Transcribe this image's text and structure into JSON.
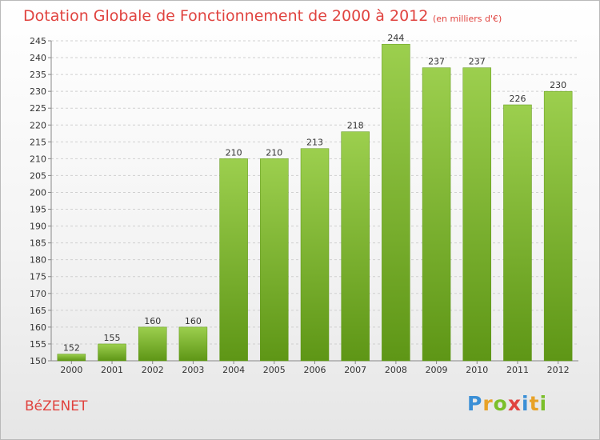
{
  "chart_data": {
    "type": "bar",
    "title": "Dotation Globale de Fonctionnement de 2000 à 2012",
    "subtitle": "(en milliers d'€)",
    "xlabel": "",
    "ylabel": "",
    "categories": [
      "2000",
      "2001",
      "2002",
      "2003",
      "2004",
      "2005",
      "2006",
      "2007",
      "2008",
      "2009",
      "2010",
      "2011",
      "2012"
    ],
    "values": [
      152,
      155,
      160,
      160,
      210,
      210,
      213,
      218,
      244,
      237,
      237,
      226,
      230
    ],
    "ylim": [
      150,
      245
    ],
    "yticks": [
      150,
      155,
      160,
      165,
      170,
      175,
      180,
      185,
      190,
      195,
      200,
      205,
      210,
      215,
      220,
      225,
      230,
      235,
      240,
      245
    ],
    "grid": true,
    "bar_color": "#7ab42e",
    "bar_color_light": "#9ccf4e",
    "bar_color_dark": "#5e9616"
  },
  "commune": "BéZENET",
  "logo": {
    "letters": [
      "P",
      "r",
      "o",
      "x",
      "i",
      "t",
      "i"
    ],
    "colors": [
      "#3a8fd6",
      "#e8a227",
      "#7bbf2a",
      "#e0433f",
      "#3a8fd6",
      "#e8a227",
      "#7bbf2a"
    ]
  }
}
